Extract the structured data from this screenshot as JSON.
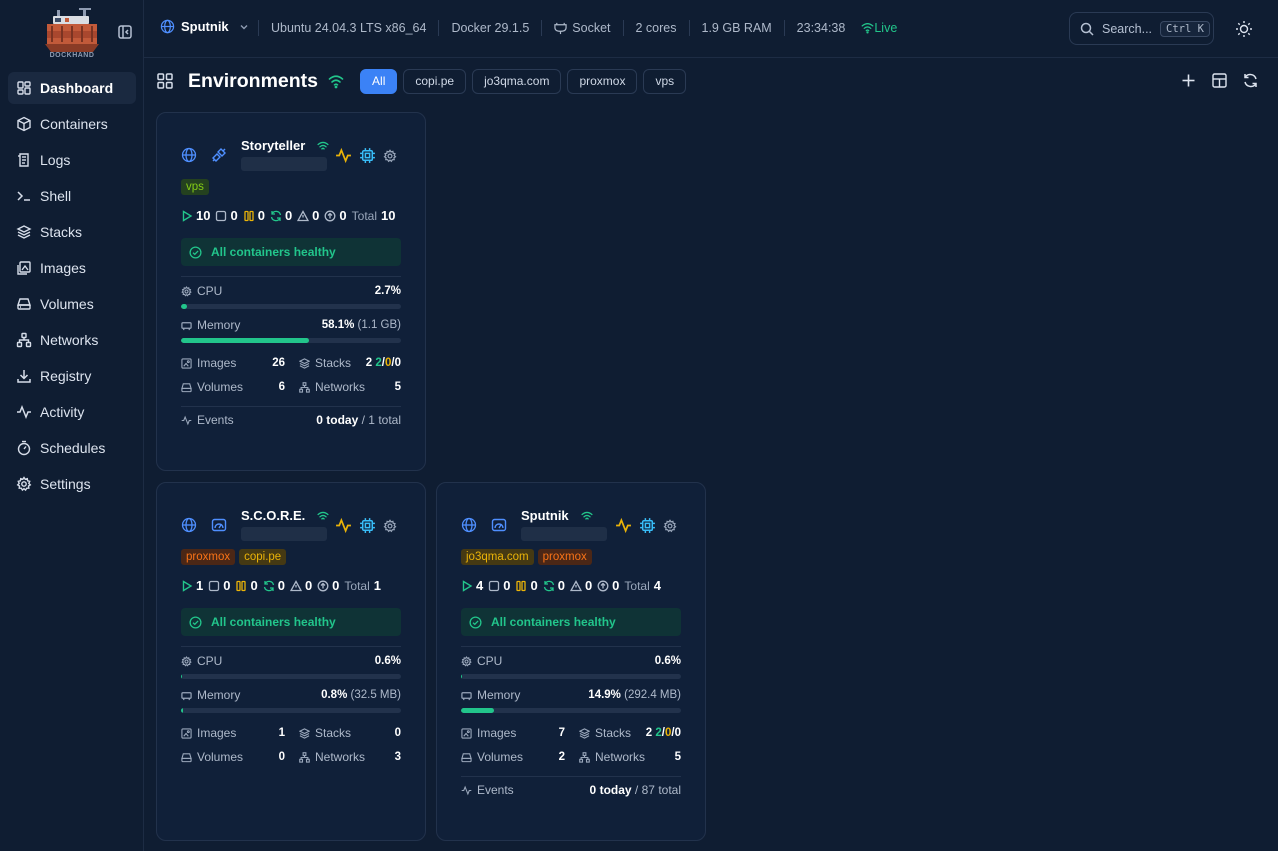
{
  "app": {
    "logo_text": "DOCKHAND"
  },
  "sidebar": {
    "items": [
      {
        "label": "Dashboard",
        "icon": "dashboard-icon",
        "active": true
      },
      {
        "label": "Containers",
        "icon": "box-icon"
      },
      {
        "label": "Logs",
        "icon": "logs-icon"
      },
      {
        "label": "Shell",
        "icon": "terminal-icon"
      },
      {
        "label": "Stacks",
        "icon": "layers-icon"
      },
      {
        "label": "Images",
        "icon": "images-icon"
      },
      {
        "label": "Volumes",
        "icon": "hard-drive-icon"
      },
      {
        "label": "Networks",
        "icon": "network-icon"
      },
      {
        "label": "Registry",
        "icon": "download-icon"
      },
      {
        "label": "Activity",
        "icon": "activity-icon"
      },
      {
        "label": "Schedules",
        "icon": "timer-icon"
      },
      {
        "label": "Settings",
        "icon": "gear-icon"
      }
    ]
  },
  "topbar": {
    "env_name": "Sputnik",
    "os": "Ubuntu 24.04.3 LTS x86_64",
    "docker": "Docker 29.1.5",
    "connection": "Socket",
    "cores": "2 cores",
    "ram": "1.9 GB RAM",
    "time": "23:34:38",
    "status": "Live",
    "search_placeholder": "Search...",
    "search_kbd": "Ctrl K"
  },
  "page": {
    "title": "Environments",
    "filters": [
      "All",
      "copi.pe",
      "jo3qma.com",
      "proxmox",
      "vps"
    ],
    "active_filter": "All"
  },
  "labels": {
    "healthy": "All containers healthy",
    "cpu": "CPU",
    "memory": "Memory",
    "images": "Images",
    "stacks": "Stacks",
    "volumes": "Volumes",
    "networks": "Networks",
    "events": "Events",
    "total": "Total",
    "today_suffix": "today",
    "total_suffix": "total"
  },
  "environments": [
    {
      "name": "Storyteller",
      "tags": [
        {
          "label": "vps",
          "color": "#84cc16"
        }
      ],
      "counts": {
        "running": "10",
        "stopped": "0",
        "paused": "0",
        "restarting": "0",
        "unhealthy": "0",
        "updates": "0",
        "total": "10"
      },
      "cpu": "2.7%",
      "cpu_pct": 2.7,
      "memory": "58.1%",
      "memory_sub": "(1.1 GB)",
      "memory_pct": 58.1,
      "images": "26",
      "stacks": "2",
      "stacks_running": "2",
      "stacks_partial": "0",
      "stacks_stopped": "0",
      "volumes": "6",
      "networks": "5",
      "events_today": "0",
      "events_total": "1"
    },
    {
      "name": "S.C.O.R.E.",
      "tags": [
        {
          "label": "proxmox",
          "color": "#f97316"
        },
        {
          "label": "copi.pe",
          "color": "#eab308"
        }
      ],
      "counts": {
        "running": "1",
        "stopped": "0",
        "paused": "0",
        "restarting": "0",
        "unhealthy": "0",
        "updates": "0",
        "total": "1"
      },
      "cpu": "0.6%",
      "cpu_pct": 0.6,
      "memory": "0.8%",
      "memory_sub": "(32.5 MB)",
      "memory_pct": 0.8,
      "images": "1",
      "stacks": "0",
      "volumes": "0",
      "networks": "3"
    },
    {
      "name": "Sputnik",
      "tags": [
        {
          "label": "jo3qma.com",
          "color": "#eab308"
        },
        {
          "label": "proxmox",
          "color": "#f97316"
        }
      ],
      "counts": {
        "running": "4",
        "stopped": "0",
        "paused": "0",
        "restarting": "0",
        "unhealthy": "0",
        "updates": "0",
        "total": "4"
      },
      "cpu": "0.6%",
      "cpu_pct": 0.6,
      "memory": "14.9%",
      "memory_sub": "(292.4 MB)",
      "memory_pct": 14.9,
      "images": "7",
      "stacks": "2",
      "stacks_running": "2",
      "stacks_partial": "0",
      "stacks_stopped": "0",
      "volumes": "2",
      "networks": "5",
      "events_today": "0",
      "events_total": "87"
    }
  ]
}
